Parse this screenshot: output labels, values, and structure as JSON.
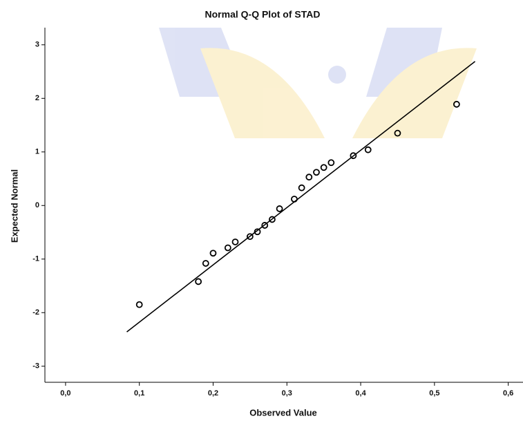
{
  "chart_data": {
    "type": "scatter",
    "title": "Normal Q-Q Plot of STAD",
    "x_label": "Observed Value",
    "y_label": "Expected Normal",
    "color": "#000000",
    "x": [
      0.1,
      0.18,
      0.19,
      0.2,
      0.22,
      0.23,
      0.25,
      0.26,
      0.27,
      0.28,
      0.29,
      0.31,
      0.32,
      0.33,
      0.34,
      0.35,
      0.36,
      0.39,
      0.41,
      0.45,
      0.53
    ],
    "values": [
      -1.85,
      -1.42,
      -1.08,
      -0.89,
      -0.79,
      -0.68,
      -0.58,
      -0.49,
      -0.37,
      -0.26,
      -0.06,
      0.12,
      0.33,
      0.53,
      0.62,
      0.71,
      0.8,
      0.93,
      1.04,
      1.35,
      1.89
    ],
    "reference_line": {
      "x": [
        0.083,
        0.555
      ],
      "y": [
        -2.36,
        2.69
      ]
    },
    "xlim": [
      -0.028,
      0.62
    ],
    "ylim": [
      -3.3,
      3.32
    ],
    "xticks": [
      {
        "value": 0.0,
        "label": "0,0"
      },
      {
        "value": 0.1,
        "label": "0,1"
      },
      {
        "value": 0.2,
        "label": "0,2"
      },
      {
        "value": 0.3,
        "label": "0,3"
      },
      {
        "value": 0.4,
        "label": "0,4"
      },
      {
        "value": 0.5,
        "label": "0,5"
      },
      {
        "value": 0.6,
        "label": "0,6"
      }
    ],
    "yticks": [
      -3,
      -2,
      -1,
      0,
      1,
      2,
      3
    ]
  }
}
